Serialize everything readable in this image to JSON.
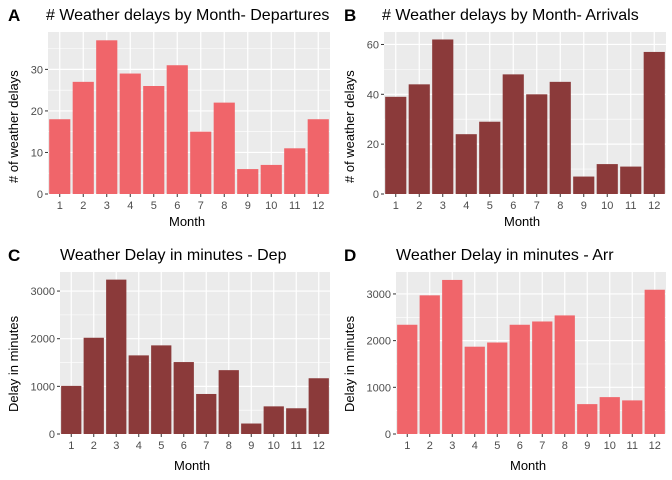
{
  "chart_data": [
    {
      "tag": "A",
      "type": "bar",
      "title": "# Weather delays by Month- Departures",
      "xlabel": "Month",
      "ylabel": "# of weather delays",
      "categories": [
        "1",
        "2",
        "3",
        "4",
        "5",
        "6",
        "7",
        "8",
        "9",
        "10",
        "11",
        "12"
      ],
      "values": [
        18,
        27,
        37,
        29,
        26,
        31,
        15,
        22,
        6,
        7,
        11,
        18
      ],
      "ylim": [
        0,
        39
      ],
      "yticks": [
        0,
        10,
        20,
        30
      ],
      "bar_color": "#F0656A",
      "panel_background": "#EBEBEB",
      "grid": true
    },
    {
      "tag": "B",
      "type": "bar",
      "title": "# Weather delays by Month- Arrivals",
      "xlabel": "Month",
      "ylabel": "# of weather delays",
      "categories": [
        "1",
        "2",
        "3",
        "4",
        "5",
        "6",
        "7",
        "8",
        "9",
        "10",
        "11",
        "12"
      ],
      "values": [
        39,
        44,
        62,
        24,
        29,
        48,
        40,
        45,
        7,
        12,
        11,
        57
      ],
      "ylim": [
        0,
        65
      ],
      "yticks": [
        0,
        20,
        40,
        60
      ],
      "bar_color": "#8B3A3A",
      "panel_background": "#EBEBEB",
      "grid": true
    },
    {
      "tag": "C",
      "type": "bar",
      "title": "Weather Delay in minutes - Dep",
      "xlabel": "Month",
      "ylabel": "Delay in minutes",
      "categories": [
        "1",
        "2",
        "3",
        "4",
        "5",
        "6",
        "7",
        "8",
        "9",
        "10",
        "11",
        "12"
      ],
      "values": [
        1010,
        2020,
        3240,
        1650,
        1860,
        1510,
        840,
        1340,
        220,
        580,
        540,
        1170
      ],
      "ylim": [
        0,
        3400
      ],
      "yticks": [
        0,
        1000,
        2000,
        3000
      ],
      "bar_color": "#8B3A3A",
      "panel_background": "#EBEBEB",
      "grid": true
    },
    {
      "tag": "D",
      "type": "bar",
      "title": "Weather Delay in minutes - Arr",
      "xlabel": "Month",
      "ylabel": "Delay in minutes",
      "categories": [
        "1",
        "2",
        "3",
        "4",
        "5",
        "6",
        "7",
        "8",
        "9",
        "10",
        "11",
        "12"
      ],
      "values": [
        2340,
        2970,
        3300,
        1870,
        1960,
        2340,
        2410,
        2540,
        640,
        790,
        720,
        3090
      ],
      "ylim": [
        0,
        3470
      ],
      "yticks": [
        0,
        1000,
        2000,
        3000
      ],
      "bar_color": "#F0656A",
      "panel_background": "#EBEBEB",
      "grid": true
    }
  ]
}
